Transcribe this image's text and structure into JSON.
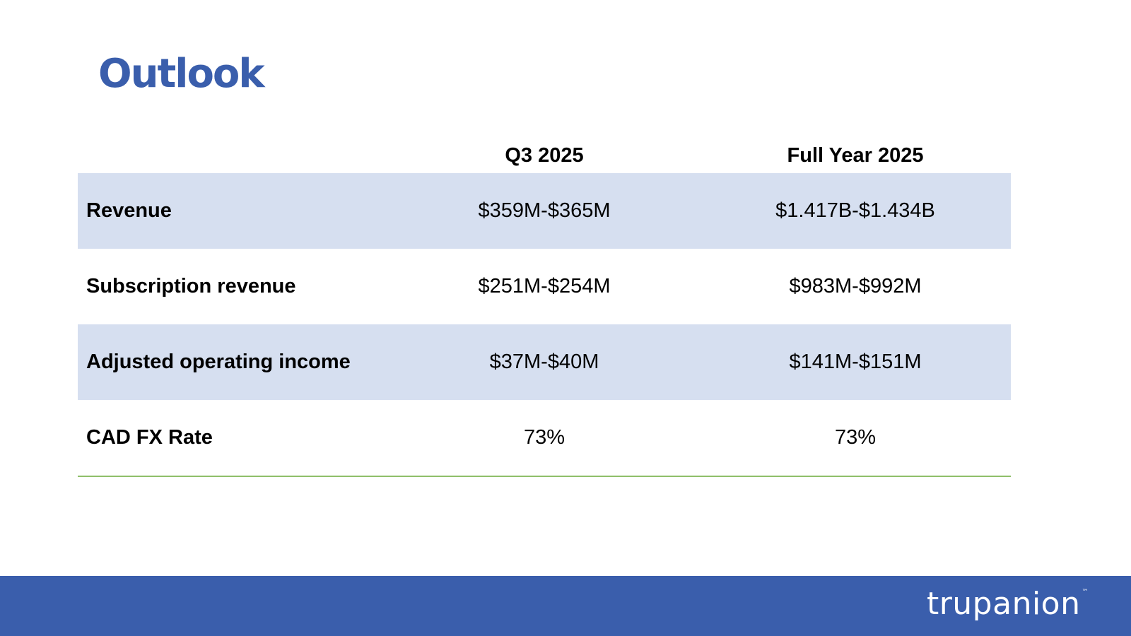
{
  "slide": {
    "title": "Outlook"
  },
  "table": {
    "columns": [
      "",
      "Q3 2025",
      "Full Year 2025"
    ],
    "rows": [
      {
        "metric": "Revenue",
        "q3_2025": "$359M-$365M",
        "fy_2025": "$1.417B-$1.434B"
      },
      {
        "metric": "Subscription revenue",
        "q3_2025": "$251M-$254M",
        "fy_2025": "$983M-$992M"
      },
      {
        "metric": "Adjusted operating income",
        "q3_2025": "$37M-$40M",
        "fy_2025": "$141M-$151M"
      },
      {
        "metric": "CAD FX Rate",
        "q3_2025": "73%",
        "fy_2025": "73%"
      }
    ]
  },
  "footer": {
    "brand": "trupanion",
    "trademark": "™"
  },
  "colors": {
    "brand_blue": "#3a5eac",
    "row_shade": "#d6dff0",
    "rule_green": "#8fbf6a"
  }
}
